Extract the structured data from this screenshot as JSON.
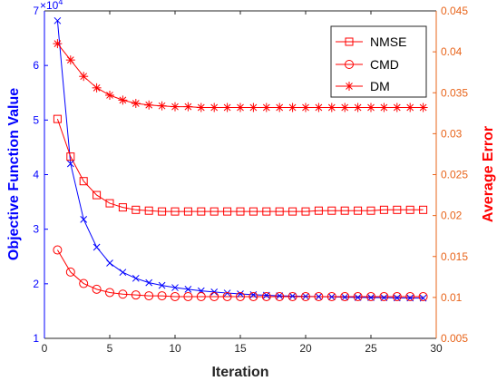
{
  "chart_data": {
    "type": "line",
    "xlabel": "Iteration",
    "xlim": [
      0,
      30
    ],
    "x_ticks": [
      "0",
      "5",
      "10",
      "15",
      "20",
      "25",
      "30"
    ],
    "y_left": {
      "label": "Objective Function Value",
      "lim": [
        1,
        7
      ],
      "ticks": [
        "1",
        "2",
        "3",
        "4",
        "5",
        "6",
        "7"
      ],
      "exponent_label": "×10",
      "exponent_power": "4",
      "color": "#0000ff"
    },
    "y_right": {
      "label": "Average Error",
      "lim": [
        0.005,
        0.045
      ],
      "ticks": [
        "0.005",
        "0.01",
        "0.015",
        "0.02",
        "0.025",
        "0.03",
        "0.035",
        "0.04",
        "0.045"
      ],
      "color": "#ff0000",
      "axis_color": "#e8641a"
    },
    "x": [
      1,
      2,
      3,
      4,
      5,
      6,
      7,
      8,
      9,
      10,
      11,
      12,
      13,
      14,
      15,
      16,
      17,
      18,
      19,
      20,
      21,
      22,
      23,
      24,
      25,
      26,
      27,
      28,
      29
    ],
    "objective": {
      "axis": "left",
      "color": "#0000ff",
      "marker": "x",
      "values": [
        6.82,
        4.2,
        3.18,
        2.67,
        2.38,
        2.21,
        2.1,
        2.02,
        1.97,
        1.93,
        1.9,
        1.87,
        1.85,
        1.83,
        1.815,
        1.8,
        1.79,
        1.78,
        1.775,
        1.77,
        1.765,
        1.76,
        1.755,
        1.75,
        1.748,
        1.745,
        1.742,
        1.74,
        1.738
      ]
    },
    "series": [
      {
        "name": "NMSE",
        "axis": "right",
        "color": "#ff0000",
        "marker": "square",
        "values": [
          0.0318,
          0.0272,
          0.0242,
          0.0225,
          0.0215,
          0.021,
          0.0207,
          0.0206,
          0.0205,
          0.0205,
          0.0205,
          0.0205,
          0.0205,
          0.0205,
          0.0205,
          0.0205,
          0.0205,
          0.0205,
          0.0205,
          0.0205,
          0.0206,
          0.0206,
          0.0206,
          0.0206,
          0.0206,
          0.0207,
          0.0207,
          0.0207,
          0.0207
        ]
      },
      {
        "name": "CMD",
        "axis": "right",
        "color": "#ff0000",
        "marker": "circle",
        "values": [
          0.0158,
          0.0131,
          0.0117,
          0.011,
          0.0106,
          0.0104,
          0.0103,
          0.0102,
          0.0102,
          0.0101,
          0.0101,
          0.0101,
          0.0101,
          0.0101,
          0.0101,
          0.0101,
          0.0101,
          0.0101,
          0.0101,
          0.0101,
          0.0101,
          0.0101,
          0.0101,
          0.0101,
          0.0101,
          0.0101,
          0.0101,
          0.0101,
          0.0101
        ]
      },
      {
        "name": "DM",
        "axis": "right",
        "color": "#ff0000",
        "marker": "asterisk",
        "values": [
          0.041,
          0.039,
          0.037,
          0.0356,
          0.0347,
          0.0341,
          0.0337,
          0.0335,
          0.0334,
          0.0333,
          0.0333,
          0.0332,
          0.0332,
          0.0332,
          0.0332,
          0.0332,
          0.0332,
          0.0332,
          0.0332,
          0.0332,
          0.0332,
          0.0332,
          0.0332,
          0.0332,
          0.0332,
          0.0332,
          0.0332,
          0.0332,
          0.0332
        ]
      }
    ],
    "legend": {
      "placement": "top-right"
    },
    "grid": false
  }
}
